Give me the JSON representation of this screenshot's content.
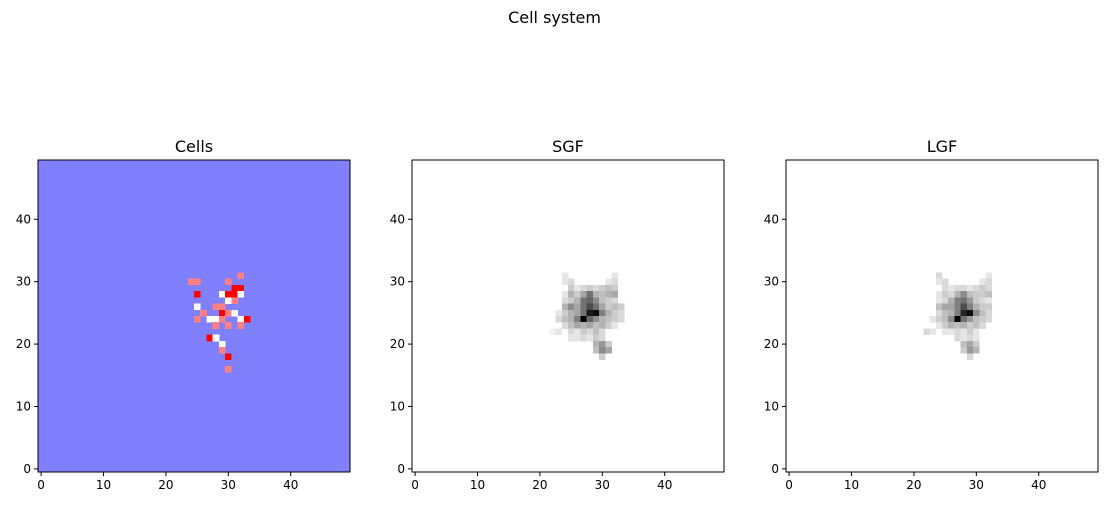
{
  "figure": {
    "suptitle": "Cell system"
  },
  "chart_data": [
    {
      "type": "heatmap",
      "title": "Cells",
      "xlim": [
        -0.5,
        49.5
      ],
      "ylim": [
        -0.5,
        49.5
      ],
      "xticks": [
        0,
        10,
        20,
        30,
        40
      ],
      "yticks": [
        0,
        10,
        20,
        30,
        40
      ],
      "xlabel": "",
      "ylabel": "",
      "background_color": "#8080ff",
      "cell_colors": {
        "white": "#ffffff",
        "pink": "#ff8080",
        "red": "#ff0000"
      },
      "cells": [
        {
          "x": 24,
          "y": 30,
          "c": "pink"
        },
        {
          "x": 25,
          "y": 30,
          "c": "pink"
        },
        {
          "x": 32,
          "y": 31,
          "c": "pink"
        },
        {
          "x": 30,
          "y": 30,
          "c": "pink"
        },
        {
          "x": 31,
          "y": 29,
          "c": "red"
        },
        {
          "x": 32,
          "y": 29,
          "c": "red"
        },
        {
          "x": 25,
          "y": 28,
          "c": "red"
        },
        {
          "x": 29,
          "y": 28,
          "c": "white"
        },
        {
          "x": 30,
          "y": 28,
          "c": "red"
        },
        {
          "x": 31,
          "y": 28,
          "c": "red"
        },
        {
          "x": 32,
          "y": 28,
          "c": "white"
        },
        {
          "x": 30,
          "y": 27,
          "c": "white"
        },
        {
          "x": 31,
          "y": 27,
          "c": "pink"
        },
        {
          "x": 25,
          "y": 26,
          "c": "white"
        },
        {
          "x": 28,
          "y": 26,
          "c": "pink"
        },
        {
          "x": 29,
          "y": 26,
          "c": "pink"
        },
        {
          "x": 26,
          "y": 25,
          "c": "pink"
        },
        {
          "x": 29,
          "y": 25,
          "c": "red"
        },
        {
          "x": 30,
          "y": 25,
          "c": "pink"
        },
        {
          "x": 31,
          "y": 25,
          "c": "white"
        },
        {
          "x": 25,
          "y": 24,
          "c": "pink"
        },
        {
          "x": 27,
          "y": 24,
          "c": "white"
        },
        {
          "x": 28,
          "y": 24,
          "c": "white"
        },
        {
          "x": 29,
          "y": 24,
          "c": "pink"
        },
        {
          "x": 32,
          "y": 24,
          "c": "white"
        },
        {
          "x": 33,
          "y": 24,
          "c": "red"
        },
        {
          "x": 28,
          "y": 23,
          "c": "pink"
        },
        {
          "x": 30,
          "y": 23,
          "c": "pink"
        },
        {
          "x": 32,
          "y": 23,
          "c": "pink"
        },
        {
          "x": 27,
          "y": 21,
          "c": "red"
        },
        {
          "x": 28,
          "y": 21,
          "c": "white"
        },
        {
          "x": 29,
          "y": 20,
          "c": "white"
        },
        {
          "x": 29,
          "y": 19,
          "c": "pink"
        },
        {
          "x": 30,
          "y": 18,
          "c": "red"
        },
        {
          "x": 30,
          "y": 16,
          "c": "pink"
        }
      ]
    },
    {
      "type": "heatmap",
      "title": "SGF",
      "xlim": [
        -0.5,
        49.5
      ],
      "ylim": [
        -0.5,
        49.5
      ],
      "xticks": [
        0,
        10,
        20,
        30,
        40
      ],
      "yticks": [
        0,
        10,
        20,
        30,
        40
      ],
      "xlabel": "",
      "ylabel": "",
      "colormap": "Greys",
      "cells": [
        {
          "x": 24,
          "y": 31,
          "v": 0.1
        },
        {
          "x": 32,
          "y": 31,
          "v": 0.1
        },
        {
          "x": 24,
          "y": 30,
          "v": 0.1
        },
        {
          "x": 25,
          "y": 30,
          "v": 0.15
        },
        {
          "x": 31,
          "y": 30,
          "v": 0.1
        },
        {
          "x": 32,
          "y": 30,
          "v": 0.15
        },
        {
          "x": 25,
          "y": 29,
          "v": 0.2
        },
        {
          "x": 26,
          "y": 29,
          "v": 0.1
        },
        {
          "x": 27,
          "y": 29,
          "v": 0.15
        },
        {
          "x": 28,
          "y": 29,
          "v": 0.2
        },
        {
          "x": 29,
          "y": 29,
          "v": 0.15
        },
        {
          "x": 30,
          "y": 29,
          "v": 0.2
        },
        {
          "x": 31,
          "y": 29,
          "v": 0.25
        },
        {
          "x": 32,
          "y": 29,
          "v": 0.2
        },
        {
          "x": 24,
          "y": 28,
          "v": 0.1
        },
        {
          "x": 25,
          "y": 28,
          "v": 0.3
        },
        {
          "x": 26,
          "y": 28,
          "v": 0.2
        },
        {
          "x": 27,
          "y": 28,
          "v": 0.35
        },
        {
          "x": 28,
          "y": 28,
          "v": 0.55
        },
        {
          "x": 29,
          "y": 28,
          "v": 0.3
        },
        {
          "x": 30,
          "y": 28,
          "v": 0.25
        },
        {
          "x": 31,
          "y": 28,
          "v": 0.3
        },
        {
          "x": 32,
          "y": 28,
          "v": 0.35
        },
        {
          "x": 24,
          "y": 27,
          "v": 0.15
        },
        {
          "x": 25,
          "y": 27,
          "v": 0.2
        },
        {
          "x": 26,
          "y": 27,
          "v": 0.3
        },
        {
          "x": 27,
          "y": 27,
          "v": 0.55
        },
        {
          "x": 28,
          "y": 27,
          "v": 0.6
        },
        {
          "x": 29,
          "y": 27,
          "v": 0.45
        },
        {
          "x": 30,
          "y": 27,
          "v": 0.25
        },
        {
          "x": 31,
          "y": 27,
          "v": 0.2
        },
        {
          "x": 32,
          "y": 27,
          "v": 0.15
        },
        {
          "x": 24,
          "y": 26,
          "v": 0.3
        },
        {
          "x": 25,
          "y": 26,
          "v": 0.45
        },
        {
          "x": 26,
          "y": 26,
          "v": 0.35
        },
        {
          "x": 27,
          "y": 26,
          "v": 0.55
        },
        {
          "x": 28,
          "y": 26,
          "v": 0.7
        },
        {
          "x": 29,
          "y": 26,
          "v": 0.55
        },
        {
          "x": 30,
          "y": 26,
          "v": 0.35
        },
        {
          "x": 31,
          "y": 26,
          "v": 0.2
        },
        {
          "x": 32,
          "y": 26,
          "v": 0.25
        },
        {
          "x": 33,
          "y": 26,
          "v": 0.2
        },
        {
          "x": 23,
          "y": 25,
          "v": 0.1
        },
        {
          "x": 24,
          "y": 25,
          "v": 0.2
        },
        {
          "x": 25,
          "y": 25,
          "v": 0.3
        },
        {
          "x": 26,
          "y": 25,
          "v": 0.35
        },
        {
          "x": 27,
          "y": 25,
          "v": 0.55
        },
        {
          "x": 28,
          "y": 25,
          "v": 0.9
        },
        {
          "x": 29,
          "y": 25,
          "v": 0.95
        },
        {
          "x": 30,
          "y": 25,
          "v": 0.5
        },
        {
          "x": 31,
          "y": 25,
          "v": 0.3
        },
        {
          "x": 32,
          "y": 25,
          "v": 0.2
        },
        {
          "x": 33,
          "y": 25,
          "v": 0.15
        },
        {
          "x": 23,
          "y": 24,
          "v": 0.15
        },
        {
          "x": 24,
          "y": 24,
          "v": 0.25
        },
        {
          "x": 25,
          "y": 24,
          "v": 0.3
        },
        {
          "x": 26,
          "y": 24,
          "v": 0.5
        },
        {
          "x": 27,
          "y": 24,
          "v": 1.0
        },
        {
          "x": 28,
          "y": 24,
          "v": 0.6
        },
        {
          "x": 29,
          "y": 24,
          "v": 0.45
        },
        {
          "x": 30,
          "y": 24,
          "v": 0.3
        },
        {
          "x": 31,
          "y": 24,
          "v": 0.25
        },
        {
          "x": 32,
          "y": 24,
          "v": 0.2
        },
        {
          "x": 33,
          "y": 24,
          "v": 0.15
        },
        {
          "x": 24,
          "y": 23,
          "v": 0.15
        },
        {
          "x": 25,
          "y": 23,
          "v": 0.25
        },
        {
          "x": 26,
          "y": 23,
          "v": 0.35
        },
        {
          "x": 27,
          "y": 23,
          "v": 0.3
        },
        {
          "x": 28,
          "y": 23,
          "v": 0.35
        },
        {
          "x": 29,
          "y": 23,
          "v": 0.25
        },
        {
          "x": 30,
          "y": 23,
          "v": 0.3
        },
        {
          "x": 31,
          "y": 23,
          "v": 0.2
        },
        {
          "x": 32,
          "y": 23,
          "v": 0.1
        },
        {
          "x": 22,
          "y": 22,
          "v": 0.05
        },
        {
          "x": 23,
          "y": 22,
          "v": 0.1
        },
        {
          "x": 25,
          "y": 22,
          "v": 0.15
        },
        {
          "x": 26,
          "y": 22,
          "v": 0.1
        },
        {
          "x": 27,
          "y": 22,
          "v": 0.2
        },
        {
          "x": 28,
          "y": 22,
          "v": 0.15
        },
        {
          "x": 29,
          "y": 22,
          "v": 0.25
        },
        {
          "x": 30,
          "y": 22,
          "v": 0.15
        },
        {
          "x": 25,
          "y": 21,
          "v": 0.1
        },
        {
          "x": 26,
          "y": 21,
          "v": 0.1
        },
        {
          "x": 27,
          "y": 21,
          "v": 0.15
        },
        {
          "x": 28,
          "y": 21,
          "v": 0.1
        },
        {
          "x": 29,
          "y": 21,
          "v": 0.2
        },
        {
          "x": 30,
          "y": 21,
          "v": 0.15
        },
        {
          "x": 29,
          "y": 20,
          "v": 0.3
        },
        {
          "x": 30,
          "y": 20,
          "v": 0.4
        },
        {
          "x": 31,
          "y": 20,
          "v": 0.2
        },
        {
          "x": 29,
          "y": 19,
          "v": 0.25
        },
        {
          "x": 30,
          "y": 19,
          "v": 0.45
        },
        {
          "x": 31,
          "y": 19,
          "v": 0.35
        },
        {
          "x": 30,
          "y": 18,
          "v": 0.2
        }
      ]
    },
    {
      "type": "heatmap",
      "title": "LGF",
      "xlim": [
        -0.5,
        49.5
      ],
      "ylim": [
        -0.5,
        49.5
      ],
      "xticks": [
        0,
        10,
        20,
        30,
        40
      ],
      "yticks": [
        0,
        10,
        20,
        30,
        40
      ],
      "xlabel": "",
      "ylabel": "",
      "colormap": "Greys",
      "cells": [
        {
          "x": 24,
          "y": 31,
          "v": 0.15
        },
        {
          "x": 32,
          "y": 31,
          "v": 0.1
        },
        {
          "x": 24,
          "y": 30,
          "v": 0.1
        },
        {
          "x": 25,
          "y": 30,
          "v": 0.15
        },
        {
          "x": 31,
          "y": 30,
          "v": 0.1
        },
        {
          "x": 32,
          "y": 30,
          "v": 0.15
        },
        {
          "x": 25,
          "y": 29,
          "v": 0.15
        },
        {
          "x": 26,
          "y": 29,
          "v": 0.1
        },
        {
          "x": 27,
          "y": 29,
          "v": 0.15
        },
        {
          "x": 28,
          "y": 29,
          "v": 0.15
        },
        {
          "x": 29,
          "y": 29,
          "v": 0.1
        },
        {
          "x": 30,
          "y": 29,
          "v": 0.15
        },
        {
          "x": 31,
          "y": 29,
          "v": 0.2
        },
        {
          "x": 32,
          "y": 29,
          "v": 0.15
        },
        {
          "x": 24,
          "y": 28,
          "v": 0.1
        },
        {
          "x": 25,
          "y": 28,
          "v": 0.2
        },
        {
          "x": 26,
          "y": 28,
          "v": 0.15
        },
        {
          "x": 27,
          "y": 28,
          "v": 0.3
        },
        {
          "x": 28,
          "y": 28,
          "v": 0.45
        },
        {
          "x": 29,
          "y": 28,
          "v": 0.25
        },
        {
          "x": 30,
          "y": 28,
          "v": 0.2
        },
        {
          "x": 31,
          "y": 28,
          "v": 0.2
        },
        {
          "x": 32,
          "y": 28,
          "v": 0.25
        },
        {
          "x": 24,
          "y": 27,
          "v": 0.1
        },
        {
          "x": 25,
          "y": 27,
          "v": 0.15
        },
        {
          "x": 26,
          "y": 27,
          "v": 0.3
        },
        {
          "x": 27,
          "y": 27,
          "v": 0.5
        },
        {
          "x": 28,
          "y": 27,
          "v": 0.55
        },
        {
          "x": 29,
          "y": 27,
          "v": 0.4
        },
        {
          "x": 30,
          "y": 27,
          "v": 0.2
        },
        {
          "x": 31,
          "y": 27,
          "v": 0.15
        },
        {
          "x": 32,
          "y": 27,
          "v": 0.1
        },
        {
          "x": 24,
          "y": 26,
          "v": 0.25
        },
        {
          "x": 25,
          "y": 26,
          "v": 0.35
        },
        {
          "x": 26,
          "y": 26,
          "v": 0.35
        },
        {
          "x": 27,
          "y": 26,
          "v": 0.5
        },
        {
          "x": 28,
          "y": 26,
          "v": 0.7
        },
        {
          "x": 29,
          "y": 26,
          "v": 0.5
        },
        {
          "x": 30,
          "y": 26,
          "v": 0.3
        },
        {
          "x": 31,
          "y": 26,
          "v": 0.2
        },
        {
          "x": 32,
          "y": 26,
          "v": 0.2
        },
        {
          "x": 24,
          "y": 25,
          "v": 0.15
        },
        {
          "x": 25,
          "y": 25,
          "v": 0.25
        },
        {
          "x": 26,
          "y": 25,
          "v": 0.3
        },
        {
          "x": 27,
          "y": 25,
          "v": 0.5
        },
        {
          "x": 28,
          "y": 25,
          "v": 0.85
        },
        {
          "x": 29,
          "y": 25,
          "v": 0.95
        },
        {
          "x": 30,
          "y": 25,
          "v": 0.45
        },
        {
          "x": 31,
          "y": 25,
          "v": 0.25
        },
        {
          "x": 32,
          "y": 25,
          "v": 0.15
        },
        {
          "x": 23,
          "y": 24,
          "v": 0.1
        },
        {
          "x": 24,
          "y": 24,
          "v": 0.2
        },
        {
          "x": 25,
          "y": 24,
          "v": 0.25
        },
        {
          "x": 26,
          "y": 24,
          "v": 0.45
        },
        {
          "x": 27,
          "y": 24,
          "v": 1.0
        },
        {
          "x": 28,
          "y": 24,
          "v": 0.55
        },
        {
          "x": 29,
          "y": 24,
          "v": 0.4
        },
        {
          "x": 30,
          "y": 24,
          "v": 0.25
        },
        {
          "x": 31,
          "y": 24,
          "v": 0.2
        },
        {
          "x": 32,
          "y": 24,
          "v": 0.15
        },
        {
          "x": 24,
          "y": 23,
          "v": 0.1
        },
        {
          "x": 25,
          "y": 23,
          "v": 0.2
        },
        {
          "x": 26,
          "y": 23,
          "v": 0.3
        },
        {
          "x": 27,
          "y": 23,
          "v": 0.25
        },
        {
          "x": 28,
          "y": 23,
          "v": 0.3
        },
        {
          "x": 29,
          "y": 23,
          "v": 0.2
        },
        {
          "x": 30,
          "y": 23,
          "v": 0.25
        },
        {
          "x": 31,
          "y": 23,
          "v": 0.15
        },
        {
          "x": 22,
          "y": 22,
          "v": 0.15
        },
        {
          "x": 23,
          "y": 22,
          "v": 0.1
        },
        {
          "x": 25,
          "y": 22,
          "v": 0.1
        },
        {
          "x": 26,
          "y": 22,
          "v": 0.1
        },
        {
          "x": 27,
          "y": 22,
          "v": 0.15
        },
        {
          "x": 28,
          "y": 22,
          "v": 0.1
        },
        {
          "x": 29,
          "y": 22,
          "v": 0.2
        },
        {
          "x": 30,
          "y": 22,
          "v": 0.1
        },
        {
          "x": 27,
          "y": 21,
          "v": 0.15
        },
        {
          "x": 28,
          "y": 21,
          "v": 0.1
        },
        {
          "x": 29,
          "y": 21,
          "v": 0.15
        },
        {
          "x": 30,
          "y": 21,
          "v": 0.1
        },
        {
          "x": 28,
          "y": 20,
          "v": 0.25
        },
        {
          "x": 29,
          "y": 20,
          "v": 0.35
        },
        {
          "x": 30,
          "y": 20,
          "v": 0.2
        },
        {
          "x": 28,
          "y": 19,
          "v": 0.2
        },
        {
          "x": 29,
          "y": 19,
          "v": 0.4
        },
        {
          "x": 30,
          "y": 19,
          "v": 0.3
        },
        {
          "x": 29,
          "y": 18,
          "v": 0.15
        }
      ]
    }
  ]
}
